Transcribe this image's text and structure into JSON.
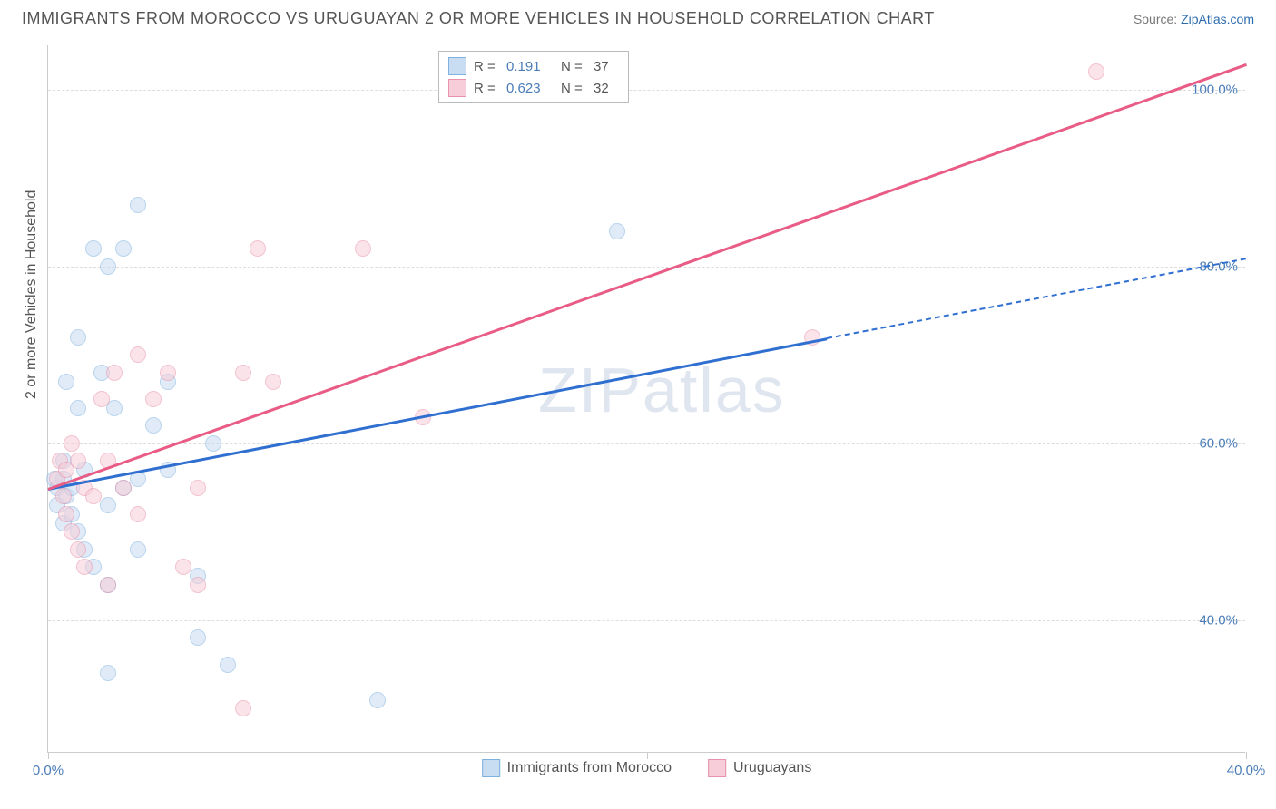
{
  "header": {
    "title": "IMMIGRANTS FROM MOROCCO VS URUGUAYAN 2 OR MORE VEHICLES IN HOUSEHOLD CORRELATION CHART",
    "source_prefix": "Source: ",
    "source_link": "ZipAtlas.com"
  },
  "chart": {
    "type": "scatter",
    "ylabel": "2 or more Vehicles in Household",
    "xlim": [
      0,
      40
    ],
    "ylim": [
      25,
      105
    ],
    "xticks": [
      0,
      20,
      40
    ],
    "xtick_labels": [
      "0.0%",
      "",
      "40.0%"
    ],
    "yticks": [
      40,
      60,
      80,
      100
    ],
    "ytick_labels": [
      "40.0%",
      "60.0%",
      "80.0%",
      "100.0%"
    ],
    "grid_color": "#dddddd",
    "axis_color": "#cccccc",
    "background_color": "#ffffff",
    "watermark": "ZIPatlas",
    "series": [
      {
        "name": "Immigrants from Morocco",
        "fill": "#c8dcf2",
        "stroke": "#7fb1e0",
        "line_color": "#2f6fd0",
        "r_value": "0.191",
        "n_value": "37",
        "trend": {
          "x1": 0,
          "y1": 55,
          "x2": 26,
          "y2": 72,
          "dash_to_x": 40,
          "dash_to_y": 81
        },
        "points": [
          [
            0.3,
            55
          ],
          [
            0.3,
            53
          ],
          [
            0.5,
            56
          ],
          [
            0.5,
            58
          ],
          [
            0.5,
            51
          ],
          [
            0.6,
            54
          ],
          [
            0.8,
            52
          ],
          [
            0.8,
            55
          ],
          [
            1.0,
            50
          ],
          [
            1.0,
            72
          ],
          [
            1.2,
            57
          ],
          [
            1.2,
            48
          ],
          [
            1.5,
            46
          ],
          [
            1.5,
            82
          ],
          [
            1.8,
            68
          ],
          [
            2.0,
            53
          ],
          [
            2.0,
            44
          ],
          [
            2.2,
            64
          ],
          [
            2.5,
            55
          ],
          [
            2.5,
            82
          ],
          [
            3.0,
            56
          ],
          [
            3.0,
            87
          ],
          [
            3.0,
            48
          ],
          [
            3.5,
            62
          ],
          [
            4.0,
            57
          ],
          [
            4.0,
            67
          ],
          [
            5.0,
            45
          ],
          [
            5.0,
            38
          ],
          [
            5.5,
            60
          ],
          [
            6.0,
            35
          ],
          [
            2.0,
            34
          ],
          [
            11.0,
            31
          ],
          [
            1.0,
            64
          ],
          [
            2.0,
            80
          ],
          [
            0.6,
            67
          ],
          [
            19.0,
            84
          ],
          [
            0.2,
            56
          ]
        ]
      },
      {
        "name": "Uruguayans",
        "fill": "#f6cdd8",
        "stroke": "#e992ab",
        "line_color": "#e85c86",
        "r_value": "0.623",
        "n_value": "32",
        "trend": {
          "x1": 0,
          "y1": 55,
          "x2": 40,
          "y2": 103
        },
        "points": [
          [
            0.3,
            56
          ],
          [
            0.4,
            58
          ],
          [
            0.5,
            54
          ],
          [
            0.6,
            57
          ],
          [
            0.6,
            52
          ],
          [
            0.8,
            60
          ],
          [
            0.8,
            50
          ],
          [
            1.0,
            58
          ],
          [
            1.0,
            48
          ],
          [
            1.2,
            55
          ],
          [
            1.2,
            46
          ],
          [
            1.5,
            54
          ],
          [
            1.8,
            65
          ],
          [
            2.0,
            58
          ],
          [
            2.0,
            44
          ],
          [
            2.2,
            68
          ],
          [
            2.5,
            55
          ],
          [
            3.0,
            70
          ],
          [
            3.0,
            52
          ],
          [
            3.5,
            65
          ],
          [
            4.0,
            68
          ],
          [
            4.5,
            46
          ],
          [
            5.0,
            55
          ],
          [
            5.0,
            44
          ],
          [
            6.5,
            68
          ],
          [
            7.0,
            82
          ],
          [
            7.5,
            67
          ],
          [
            10.5,
            82
          ],
          [
            12.5,
            63
          ],
          [
            6.5,
            30
          ],
          [
            25.5,
            72
          ],
          [
            35.0,
            102
          ]
        ]
      }
    ],
    "legend_bottom": [
      {
        "label": "Immigrants from Morocco",
        "series": 0
      },
      {
        "label": "Uruguayans",
        "series": 1
      }
    ]
  }
}
